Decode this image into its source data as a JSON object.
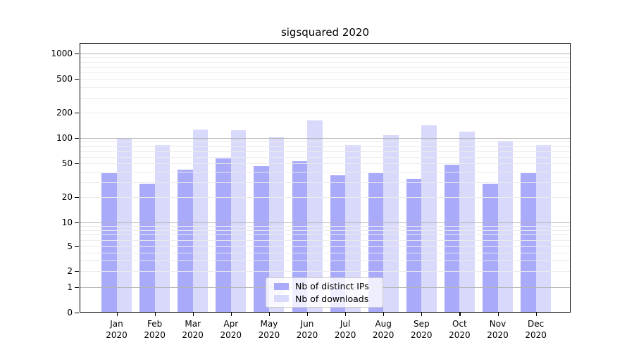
{
  "chart_data": {
    "type": "bar",
    "title": "sigsquared 2020",
    "months": [
      "Jan",
      "Feb",
      "Mar",
      "Apr",
      "May",
      "Jun",
      "Jul",
      "Aug",
      "Sep",
      "Oct",
      "Nov",
      "Dec"
    ],
    "year": "2020",
    "categories": [
      "Jan 2020",
      "Feb 2020",
      "Mar 2020",
      "Apr 2020",
      "May 2020",
      "Jun 2020",
      "Jul 2020",
      "Aug 2020",
      "Sep 2020",
      "Oct 2020",
      "Nov 2020",
      "Dec 2020"
    ],
    "series": [
      {
        "name": "Nb of distinct IPs",
        "color": "#aaaafa",
        "values": [
          38,
          29,
          42,
          57,
          46,
          53,
          36,
          38,
          33,
          48,
          29,
          38
        ]
      },
      {
        "name": "Nb of downloads",
        "color": "#d9d9fb",
        "values": [
          100,
          83,
          125,
          124,
          102,
          162,
          82,
          107,
          140,
          118,
          93,
          82
        ]
      }
    ],
    "xlabel": "",
    "ylabel": "",
    "yscale": "symlog",
    "ylim": [
      0,
      1300
    ],
    "yticks": [
      1000,
      500,
      200,
      100,
      50,
      20,
      10,
      5,
      2,
      1,
      0
    ],
    "ytick_labels": [
      "1000",
      "500",
      "200",
      "100",
      "50",
      "20",
      "10",
      "5",
      "2",
      "1",
      "0"
    ],
    "grid": true,
    "grid_over_bars": true,
    "legend_position": "lower center",
    "colors": {
      "grid_minor": "#ebebeb",
      "grid_major": "#b3b3b3",
      "spine": "#000000",
      "text": "#000000",
      "legend_border": "#cccccc"
    }
  }
}
